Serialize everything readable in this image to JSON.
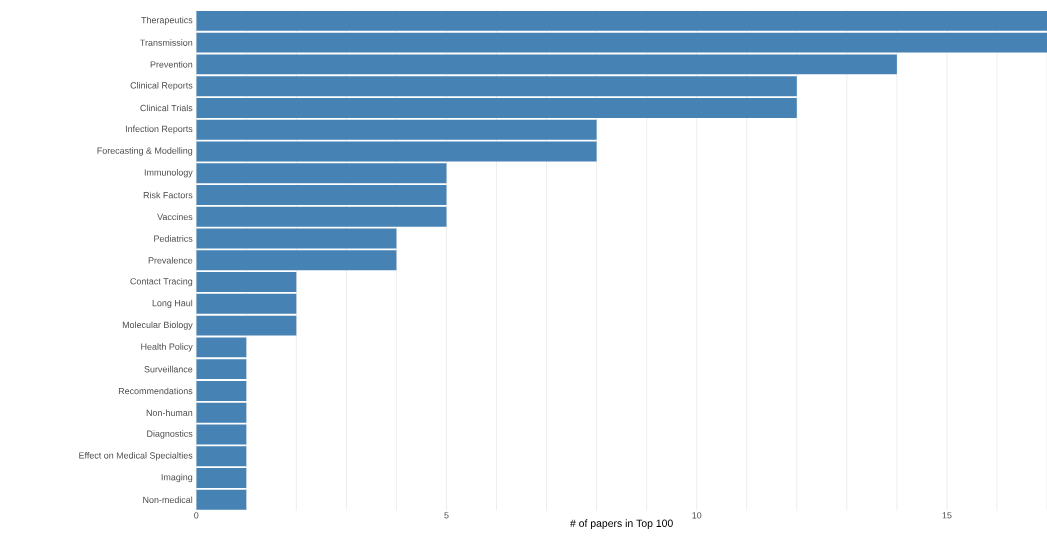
{
  "chart_data": {
    "type": "bar",
    "orientation": "horizontal",
    "xlabel": "# of papers in Top 100",
    "categories": [
      "Therapeutics",
      "Transmission",
      "Prevention",
      "Clinical Reports",
      "Clinical Trials",
      "Infection Reports",
      "Forecasting & Modelling",
      "Immunology",
      "Risk Factors",
      "Vaccines",
      "Pediatrics",
      "Prevalence",
      "Contact Tracing",
      "Long Haul",
      "Molecular Biology",
      "Health Policy",
      "Surveillance",
      "Recommendations",
      "Non-human",
      "Diagnostics",
      "Effect on Medical Specialties",
      "Imaging",
      "Non-medical"
    ],
    "values": [
      17,
      17,
      14,
      12,
      12,
      8,
      8,
      5,
      5,
      5,
      4,
      4,
      2,
      2,
      2,
      1,
      1,
      1,
      1,
      1,
      1,
      1,
      1
    ],
    "color": "#4682b4",
    "xlim": [
      0,
      17
    ],
    "xticks": [
      0,
      {
        "value": 1,
        "label": null
      },
      {
        "value": 2,
        "label": null
      },
      {
        "value": 3,
        "label": null
      },
      {
        "value": 4,
        "label": null
      },
      5,
      {
        "value": 6,
        "label": null
      },
      {
        "value": 7,
        "label": null
      },
      {
        "value": 8,
        "label": null
      },
      {
        "value": 9,
        "label": null
      },
      10,
      {
        "value": 11,
        "label": null
      },
      {
        "value": 12,
        "label": null
      },
      {
        "value": 13,
        "label": null
      },
      {
        "value": 14,
        "label": null
      },
      15,
      {
        "value": 16,
        "label": null
      },
      {
        "value": 17,
        "label": null
      }
    ],
    "grid": "x"
  }
}
